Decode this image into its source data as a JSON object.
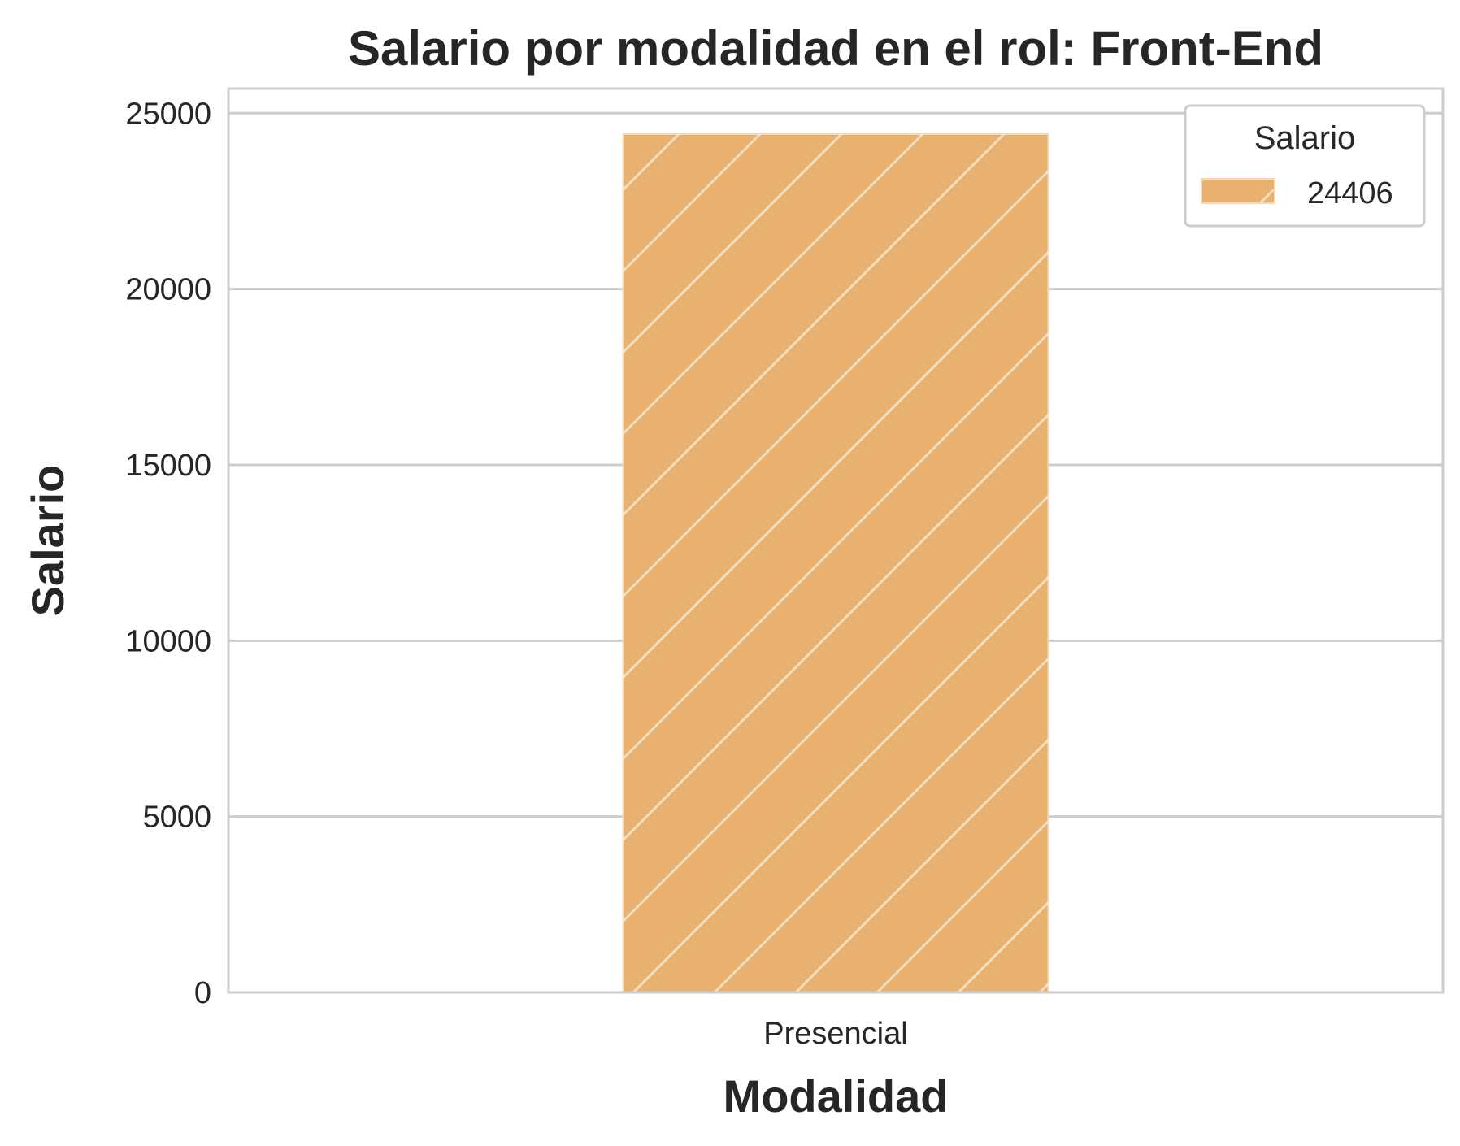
{
  "chart_data": {
    "type": "bar",
    "title": "Salario por modalidad en el rol: Front-End",
    "xlabel": "Modalidad",
    "ylabel": "Salario",
    "categories": [
      "Presencial"
    ],
    "values": [
      24406
    ],
    "ylim": [
      0,
      25700
    ],
    "yticks": [
      0,
      5000,
      10000,
      15000,
      20000,
      25000
    ],
    "grid": "y",
    "legend": {
      "title": "Salario",
      "entries": [
        "24406"
      ],
      "position": "top-right"
    },
    "bar_color": "#E9B16F",
    "hatch": "diagonal"
  }
}
